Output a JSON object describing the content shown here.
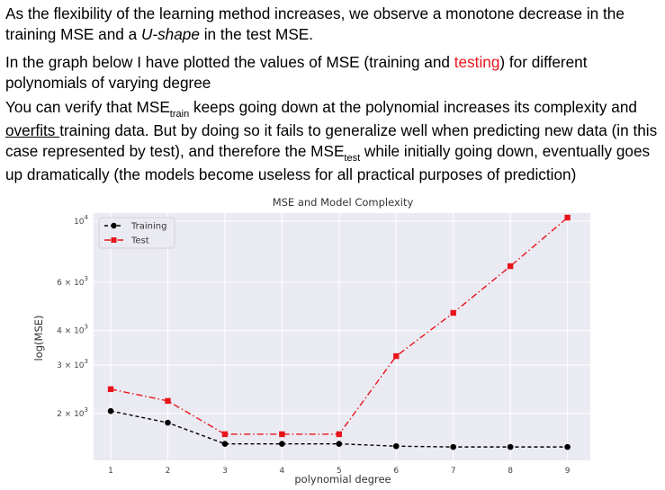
{
  "text": {
    "p1": {
      "a": "As the flexibility of the learning method increases, we observe a monotone decrease in the training MSE and a ",
      "b": "U-shape",
      "c": " in the test MSE."
    },
    "p2": {
      "a": "In the graph below I have plotted the values of MSE (training and ",
      "red": "testing",
      "b": ")  for different polynomials of varying degree"
    },
    "p3": {
      "a": "You can verify that MSE",
      "sub1": "train",
      "b": "  keeps going down at the polynomial increases its complexity and ",
      "u": "overfits ",
      "c": " training data.  But by doing so it fails to generalize well when predicting new data (in this case represented by test), and therefore the MSE",
      "sub2": "test",
      "d": "  while initially going down, eventually goes up dramatically  (the models become useless for all practical purposes of prediction)"
    }
  },
  "colors": {
    "red_text": "#e8141b",
    "test_series": "#e8141b",
    "train_series": "#000000",
    "plot_bg": "#eaeaf2",
    "grid": "#ffffff"
  },
  "chart_data": {
    "type": "line",
    "title": "MSE and Model Complexity",
    "xlabel": "polynomial degree",
    "ylabel": "log(MSE)",
    "y_scale": "log",
    "x": [
      1,
      2,
      3,
      4,
      5,
      6,
      7,
      8,
      9
    ],
    "xlim": [
      0.7,
      9.4
    ],
    "ylim": [
      1350,
      10700
    ],
    "yticks": [
      {
        "value": 2000,
        "label_base": "2 × 10",
        "label_exp": "3"
      },
      {
        "value": 3000,
        "label_base": "3 × 10",
        "label_exp": "3"
      },
      {
        "value": 4000,
        "label_base": "4 × 10",
        "label_exp": "3"
      },
      {
        "value": 6000,
        "label_base": "6 × 10",
        "label_exp": "3"
      },
      {
        "value": 10000,
        "label_base": "10",
        "label_exp": "4"
      }
    ],
    "grid": true,
    "legend_position": "top-left",
    "series": [
      {
        "name": "Training",
        "marker": "circle",
        "linestyle": "dashed",
        "values": [
          2040,
          1850,
          1550,
          1550,
          1550,
          1520,
          1510,
          1510,
          1510
        ]
      },
      {
        "name": "Test",
        "marker": "square",
        "linestyle": "dashdot",
        "values": [
          2450,
          2220,
          1680,
          1680,
          1680,
          3230,
          4640,
          6860,
          10300
        ]
      }
    ]
  }
}
